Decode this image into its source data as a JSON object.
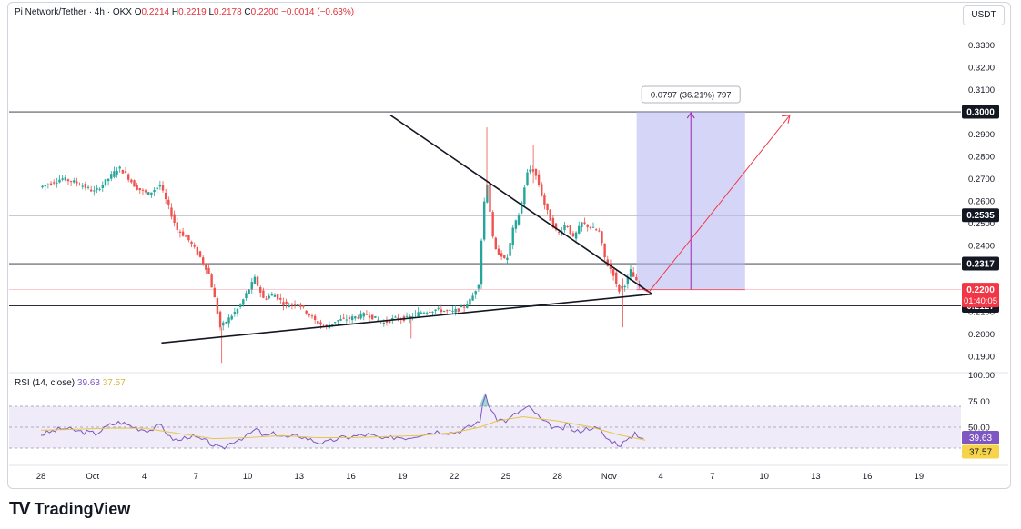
{
  "header": {
    "symbol": "Pi Network/Tether · 4h · OKX",
    "open_label": "O",
    "open": "0.2214",
    "high_label": "H",
    "high": "0.2219",
    "low_label": "L",
    "low": "0.2178",
    "close_label": "C",
    "close": "0.2200",
    "change": "−0.0014 (−0.63%)"
  },
  "currency_button": "USDT",
  "rsi": {
    "label": "RSI (14, close)",
    "value": "39.63",
    "ma_value": "37.57"
  },
  "measure_label": "0.0797 (36.21%) 797",
  "logo": {
    "mark": "TV",
    "text": "TradingView"
  },
  "colors": {
    "up": "#26a69a",
    "down": "#ef5350",
    "rsi": "#7e57c2",
    "rsi_ma": "#e8c547",
    "projection": "#f23645",
    "target_box": "#b2b5f0"
  },
  "chart_data": {
    "type": "candlestick",
    "timeframe": "4h",
    "price_axis": {
      "ticks": [
        0.19,
        0.2,
        0.21,
        0.22,
        0.23,
        0.24,
        0.25,
        0.26,
        0.27,
        0.28,
        0.29,
        0.3,
        0.31,
        0.32,
        0.33
      ],
      "tick_labels": [
        "0.1900",
        "0.2000",
        "0.2100",
        "0.2200",
        "0.2300",
        "0.2400",
        "0.2500",
        "0.2600",
        "0.2700",
        "0.2800",
        "0.2900",
        "0.3000",
        "0.3100",
        "0.3200",
        "0.3300"
      ]
    },
    "x_labels": [
      "28",
      "Oct",
      "4",
      "7",
      "10",
      "13",
      "16",
      "19",
      "22",
      "25",
      "28",
      "Nov",
      "4",
      "7",
      "10",
      "13",
      "16",
      "19"
    ],
    "horizontal_levels": [
      {
        "value": 0.3,
        "label": "0.3000"
      },
      {
        "value": 0.2535,
        "label": "0.2535"
      },
      {
        "value": 0.2317,
        "label": "0.2317"
      },
      {
        "value": 0.2127,
        "label": "0.2127"
      }
    ],
    "current_price": {
      "value": 0.22,
      "label": "0.2200",
      "countdown": "01:40:05"
    },
    "trendlines": [
      {
        "name": "descending-resistance",
        "from": [
          20.3,
          0.2985
        ],
        "to": [
          35.5,
          0.218
        ]
      },
      {
        "name": "ascending-support",
        "from": [
          7.0,
          0.196
        ],
        "to": [
          35.5,
          0.218
        ]
      }
    ],
    "target": {
      "from": 0.22,
      "to": 0.3,
      "change": 0.0797,
      "pct": 36.21,
      "span": 797
    },
    "close_path": [
      [
        0,
        0.266
      ],
      [
        1.3,
        0.27
      ],
      [
        2.2,
        0.268
      ],
      [
        3.2,
        0.264
      ],
      [
        4.0,
        0.27
      ],
      [
        4.6,
        0.275
      ],
      [
        5.0,
        0.272
      ],
      [
        5.6,
        0.266
      ],
      [
        6.3,
        0.263
      ],
      [
        7.0,
        0.267
      ],
      [
        7.5,
        0.257
      ],
      [
        8.0,
        0.247
      ],
      [
        8.6,
        0.243
      ],
      [
        9.3,
        0.235
      ],
      [
        9.8,
        0.228
      ],
      [
        10.2,
        0.215
      ],
      [
        10.5,
        0.203
      ],
      [
        11.0,
        0.207
      ],
      [
        11.6,
        0.212
      ],
      [
        12.0,
        0.218
      ],
      [
        12.5,
        0.225
      ],
      [
        13.0,
        0.216
      ],
      [
        13.6,
        0.218
      ],
      [
        14.3,
        0.213
      ],
      [
        15.0,
        0.214
      ],
      [
        16.0,
        0.206
      ],
      [
        16.6,
        0.203
      ],
      [
        17.2,
        0.206
      ],
      [
        18.0,
        0.207
      ],
      [
        19.0,
        0.209
      ],
      [
        20.0,
        0.205
      ],
      [
        20.6,
        0.207
      ],
      [
        21.3,
        0.207
      ],
      [
        22.2,
        0.21
      ],
      [
        23.0,
        0.211
      ],
      [
        24.0,
        0.21
      ],
      [
        24.6,
        0.212
      ],
      [
        25.1,
        0.216
      ],
      [
        25.5,
        0.223
      ],
      [
        25.8,
        0.258
      ],
      [
        26.0,
        0.268
      ],
      [
        26.4,
        0.238
      ],
      [
        26.8,
        0.236
      ],
      [
        27.1,
        0.232
      ],
      [
        27.5,
        0.247
      ],
      [
        27.9,
        0.255
      ],
      [
        28.3,
        0.272
      ],
      [
        28.6,
        0.275
      ],
      [
        28.9,
        0.27
      ],
      [
        29.3,
        0.259
      ],
      [
        29.7,
        0.251
      ],
      [
        30.1,
        0.245
      ],
      [
        30.6,
        0.25
      ],
      [
        31.0,
        0.243
      ],
      [
        31.5,
        0.25
      ],
      [
        32.0,
        0.248
      ],
      [
        32.5,
        0.246
      ],
      [
        32.9,
        0.232
      ],
      [
        33.3,
        0.228
      ],
      [
        33.6,
        0.219
      ],
      [
        33.9,
        0.222
      ],
      [
        34.1,
        0.223
      ],
      [
        34.3,
        0.229
      ],
      [
        34.6,
        0.224
      ],
      [
        34.9,
        0.221
      ],
      [
        35.1,
        0.22
      ]
    ],
    "rsi_series": [
      [
        0,
        43
      ],
      [
        1.3,
        49
      ],
      [
        2.2,
        46
      ],
      [
        3.2,
        44
      ],
      [
        4.0,
        52
      ],
      [
        4.6,
        55
      ],
      [
        5.6,
        49
      ],
      [
        6.3,
        47
      ],
      [
        7.0,
        52
      ],
      [
        7.5,
        40
      ],
      [
        8.0,
        37
      ],
      [
        8.6,
        42
      ],
      [
        9.3,
        38
      ],
      [
        9.8,
        35
      ],
      [
        10.2,
        31
      ],
      [
        10.5,
        29
      ],
      [
        11.2,
        37
      ],
      [
        12.0,
        42
      ],
      [
        12.5,
        48
      ],
      [
        13.0,
        41
      ],
      [
        13.6,
        44
      ],
      [
        14.3,
        40
      ],
      [
        15.0,
        42
      ],
      [
        16.0,
        36
      ],
      [
        16.6,
        35
      ],
      [
        17.2,
        39
      ],
      [
        18.0,
        41
      ],
      [
        19.0,
        43
      ],
      [
        20.0,
        38
      ],
      [
        20.6,
        41
      ],
      [
        21.3,
        40
      ],
      [
        22.2,
        44
      ],
      [
        23.0,
        46
      ],
      [
        24.0,
        45
      ],
      [
        24.6,
        48
      ],
      [
        25.1,
        52
      ],
      [
        25.5,
        57
      ],
      [
        25.8,
        83
      ],
      [
        26.0,
        72
      ],
      [
        26.4,
        58
      ],
      [
        26.8,
        57
      ],
      [
        27.1,
        56
      ],
      [
        27.5,
        62
      ],
      [
        27.9,
        66
      ],
      [
        28.3,
        69
      ],
      [
        28.6,
        66
      ],
      [
        29.0,
        58
      ],
      [
        29.4,
        53
      ],
      [
        29.8,
        50
      ],
      [
        30.2,
        47
      ],
      [
        30.6,
        53
      ],
      [
        31.0,
        45
      ],
      [
        31.5,
        48
      ],
      [
        32.0,
        50
      ],
      [
        32.5,
        47
      ],
      [
        32.9,
        38
      ],
      [
        33.3,
        36
      ],
      [
        33.6,
        33
      ],
      [
        33.9,
        36
      ],
      [
        34.2,
        38
      ],
      [
        34.5,
        45
      ],
      [
        34.8,
        41
      ],
      [
        35.1,
        39.6
      ]
    ],
    "rsi_ma_series": [
      [
        0,
        47
      ],
      [
        2,
        48
      ],
      [
        4,
        49
      ],
      [
        6,
        49
      ],
      [
        8,
        44
      ],
      [
        10,
        39
      ],
      [
        12,
        40
      ],
      [
        14,
        42
      ],
      [
        16,
        40
      ],
      [
        18,
        40
      ],
      [
        20,
        41
      ],
      [
        22,
        42
      ],
      [
        24,
        45
      ],
      [
        25.5,
        50
      ],
      [
        26.5,
        56
      ],
      [
        28,
        60
      ],
      [
        30,
        56
      ],
      [
        32,
        50
      ],
      [
        33.5,
        43
      ],
      [
        35.1,
        37.6
      ]
    ],
    "rsi_axis": {
      "ticks": [
        100,
        75,
        50
      ],
      "tick_labels": [
        "100.00",
        "75.00",
        "50.00"
      ]
    }
  }
}
